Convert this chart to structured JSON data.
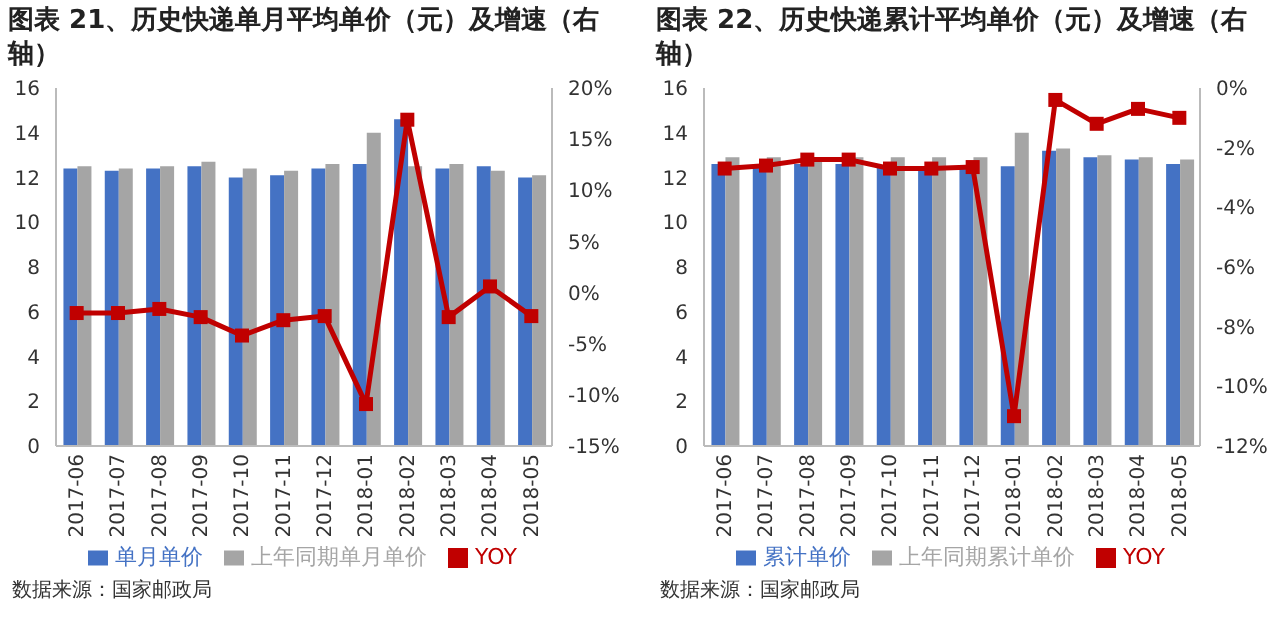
{
  "chart_data": [
    {
      "type": "bar",
      "title": "图表 21、历史快递单月平均单价（元）及增速（右轴）",
      "categories": [
        "2017-06",
        "2017-07",
        "2017-08",
        "2017-09",
        "2017-10",
        "2017-11",
        "2017-12",
        "2018-01",
        "2018-02",
        "2018-03",
        "2018-04",
        "2018-05"
      ],
      "series": [
        {
          "name": "单月单价",
          "color": "#4472c4",
          "values": [
            12.4,
            12.3,
            12.4,
            12.5,
            12.0,
            12.1,
            12.4,
            12.6,
            14.6,
            12.4,
            12.5,
            12.0
          ]
        },
        {
          "name": "上年同期单月单价",
          "color": "#a5a5a5",
          "values": [
            12.5,
            12.4,
            12.5,
            12.7,
            12.4,
            12.3,
            12.6,
            14.0,
            12.5,
            12.6,
            12.3,
            12.1
          ]
        },
        {
          "name": "YOY",
          "type": "line",
          "axis": "y2",
          "color": "#c00000",
          "values": [
            -2.0,
            -2.0,
            -1.6,
            -2.4,
            -4.2,
            -2.7,
            -2.3,
            -10.9,
            16.9,
            -2.4,
            0.6,
            -2.3
          ]
        }
      ],
      "ylim": [
        0,
        16
      ],
      "yticks": [
        0,
        2,
        4,
        6,
        8,
        10,
        12,
        14,
        16
      ],
      "y2lim": [
        -15,
        20
      ],
      "y2ticks": [
        {
          "value": -15,
          "label": "-15%"
        },
        {
          "value": -10,
          "label": "-10%"
        },
        {
          "value": -5,
          "label": "-5%"
        },
        {
          "value": 0,
          "label": "0%"
        },
        {
          "value": 5,
          "label": "5%"
        },
        {
          "value": 10,
          "label": "10%"
        },
        {
          "value": 15,
          "label": "15%"
        },
        {
          "value": 20,
          "label": "20%"
        }
      ],
      "marker": "square",
      "legend": "bottom",
      "grid": false,
      "annotations": [
        "数据来源：国家邮政局"
      ]
    },
    {
      "type": "bar",
      "title": "图表 22、历史快递累计平均单价（元）及增速（右轴）",
      "categories": [
        "2017-06",
        "2017-07",
        "2017-08",
        "2017-09",
        "2017-10",
        "2017-11",
        "2017-12",
        "2018-01",
        "2018-02",
        "2018-03",
        "2018-04",
        "2018-05"
      ],
      "series": [
        {
          "name": "累计单价",
          "color": "#4472c4",
          "values": [
            12.6,
            12.6,
            12.6,
            12.6,
            12.5,
            12.5,
            12.5,
            12.5,
            13.2,
            12.9,
            12.8,
            12.6
          ]
        },
        {
          "name": "上年同期累计单价",
          "color": "#a5a5a5",
          "values": [
            12.9,
            12.9,
            12.9,
            12.9,
            12.9,
            12.9,
            12.9,
            14.0,
            13.3,
            13.0,
            12.9,
            12.8
          ]
        },
        {
          "name": "YOY",
          "type": "line",
          "axis": "y2",
          "color": "#c00000",
          "values": [
            -2.7,
            -2.6,
            -2.4,
            -2.4,
            -2.7,
            -2.7,
            -2.65,
            -11.0,
            -0.4,
            -1.2,
            -0.7,
            -1.0
          ]
        }
      ],
      "ylim": [
        0,
        16
      ],
      "yticks": [
        0,
        2,
        4,
        6,
        8,
        10,
        12,
        14,
        16
      ],
      "y2lim": [
        -12,
        0
      ],
      "y2ticks": [
        {
          "value": -12,
          "label": "-12%"
        },
        {
          "value": -10,
          "label": "-10%"
        },
        {
          "value": -8,
          "label": "-8%"
        },
        {
          "value": -6,
          "label": "-6%"
        },
        {
          "value": -4,
          "label": "-4%"
        },
        {
          "value": -2,
          "label": "-2%"
        },
        {
          "value": 0,
          "label": "0%"
        }
      ],
      "marker": "square",
      "legend": "bottom",
      "grid": false,
      "annotations": [
        "数据来源：国家邮政局"
      ]
    }
  ]
}
